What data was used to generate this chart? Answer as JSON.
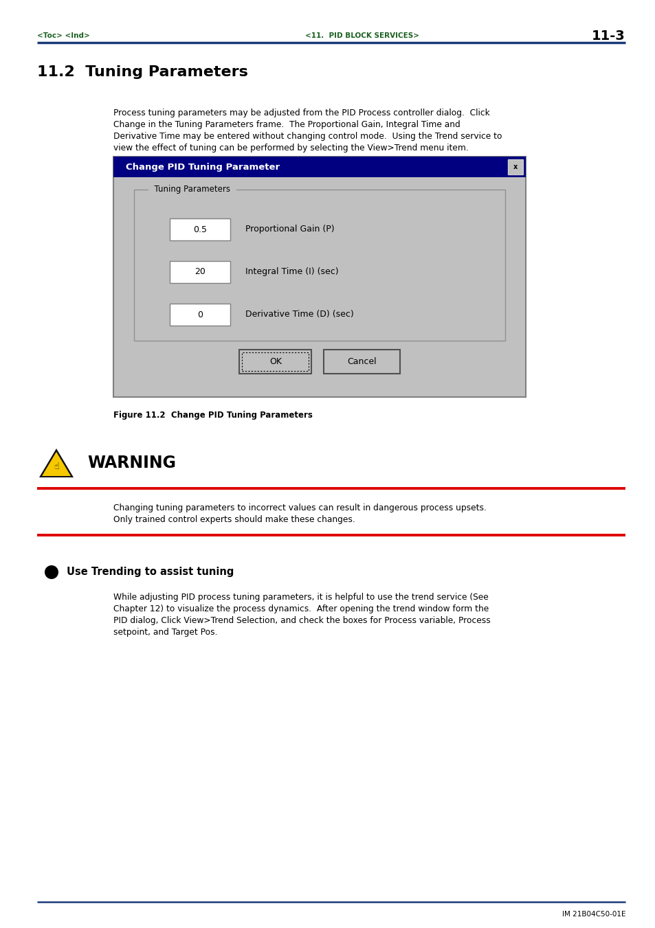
{
  "page_width": 9.54,
  "page_height": 13.51,
  "bg_color": "#ffffff",
  "header_line_color": "#1a3a7a",
  "header_toc_text": "<Toc> <Ind>",
  "header_center_text": "<11.  PID BLOCK SERVICES>",
  "header_page_num": "11-3",
  "header_text_color": "#1b6020",
  "header_page_color": "#000000",
  "section_title": "11.2  Tuning Parameters",
  "section_title_color": "#000000",
  "intro_text": "Process tuning parameters may be adjusted from the PID Process controller dialog.  Click\nChange in the Tuning Parameters frame.  The Proportional Gain, Integral Time and\nDerivative Time may be entered without changing control mode.  Using the Trend service to\nview the effect of tuning can be performed by selecting the View>Trend menu item.",
  "dialog_title": "Change PID Tuning Parameter",
  "dialog_title_bg": "#000080",
  "dialog_title_text_color": "#ffffff",
  "dialog_bg": "#c0c0c0",
  "dialog_border_color": "#808080",
  "dialog_frame_label": "Tuning Parameters",
  "dialog_fields": [
    {
      "value": "0.5",
      "label": "Proportional Gain (P)"
    },
    {
      "value": "20",
      "label": "Integral Time (I) (sec)"
    },
    {
      "value": "0",
      "label": "Derivative Time (D) (sec)"
    }
  ],
  "dialog_btn_ok": "OK",
  "dialog_btn_cancel": "Cancel",
  "figure_caption": "Figure 11.2  Change PID Tuning Parameters",
  "warning_title": "WARNING",
  "warning_text": "Changing tuning parameters to incorrect values can result in dangerous process upsets.\nOnly trained control experts should make these changes.",
  "warning_line_color": "#dd0000",
  "bullet_title": "Use Trending to assist tuning",
  "bullet_text": "While adjusting PID process tuning parameters, it is helpful to use the trend service (See\nChapter 12) to visualize the process dynamics.  After opening the trend window form the\nPID dialog, Click View>Trend Selection, and check the boxes for Process variable, Process\nsetpoint, and Target Pos.",
  "footer_line_color": "#1a3a7a",
  "footer_text": "IM 21B04C50-01E",
  "footer_text_color": "#000000"
}
